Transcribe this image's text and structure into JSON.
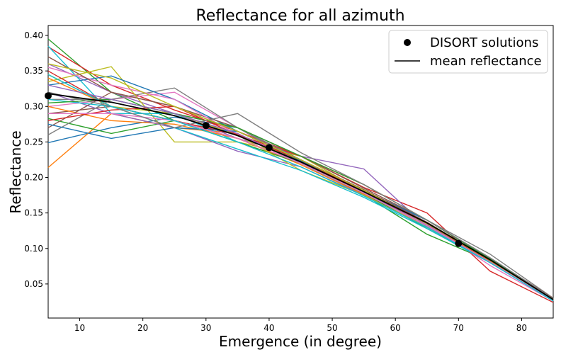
{
  "chart_data": {
    "type": "line",
    "title": "Reflectance for all azimuth",
    "xlabel": "Emergence (in degree)",
    "ylabel": "Reflectance",
    "xlim": [
      5,
      85
    ],
    "ylim": [
      0.002,
      0.414
    ],
    "xticks": [
      10,
      20,
      30,
      40,
      50,
      60,
      70,
      80
    ],
    "xtick_labels": [
      "10",
      "20",
      "30",
      "40",
      "50",
      "60",
      "70",
      "80"
    ],
    "yticks": [
      0.05,
      0.1,
      0.15,
      0.2,
      0.25,
      0.3,
      0.35,
      0.4
    ],
    "ytick_labels": [
      "0.05",
      "0.10",
      "0.15",
      "0.20",
      "0.25",
      "0.30",
      "0.35",
      "0.40"
    ],
    "grid": false,
    "legend_position": "top-right",
    "legend": [
      "DISORT solutions",
      "mean reflectance"
    ],
    "x": [
      5,
      15,
      25,
      35,
      45,
      55,
      65,
      75,
      85
    ],
    "mean_series": {
      "name": "mean reflectance",
      "color": "#000000",
      "values": [
        0.318,
        0.306,
        0.287,
        0.259,
        0.222,
        0.18,
        0.136,
        0.084,
        0.028
      ]
    },
    "disort_points": {
      "name": "DISORT solutions",
      "color": "#000000",
      "x": [
        5,
        30,
        40,
        70
      ],
      "y": [
        0.315,
        0.273,
        0.242,
        0.107
      ]
    },
    "azimuth_series": [
      {
        "color": "#1f77b4",
        "values": [
          0.249,
          0.27,
          0.285,
          0.27,
          0.225,
          0.18,
          0.132,
          0.082,
          0.027
        ]
      },
      {
        "color": "#ff7f0e",
        "values": [
          0.214,
          0.29,
          0.27,
          0.262,
          0.22,
          0.177,
          0.133,
          0.083,
          0.028
        ]
      },
      {
        "color": "#2ca02c",
        "values": [
          0.395,
          0.32,
          0.28,
          0.26,
          0.223,
          0.176,
          0.12,
          0.082,
          0.029
        ]
      },
      {
        "color": "#d62728",
        "values": [
          0.384,
          0.33,
          0.295,
          0.265,
          0.23,
          0.186,
          0.15,
          0.068,
          0.024
        ]
      },
      {
        "color": "#9467bd",
        "values": [
          0.36,
          0.32,
          0.29,
          0.255,
          0.23,
          0.212,
          0.13,
          0.08,
          0.026
        ]
      },
      {
        "color": "#8c564b",
        "values": [
          0.29,
          0.3,
          0.28,
          0.26,
          0.225,
          0.18,
          0.14,
          0.085,
          0.029
        ]
      },
      {
        "color": "#e377c2",
        "values": [
          0.3,
          0.31,
          0.32,
          0.27,
          0.22,
          0.18,
          0.135,
          0.076,
          0.026
        ]
      },
      {
        "color": "#7f7f7f",
        "values": [
          0.31,
          0.31,
          0.326,
          0.27,
          0.22,
          0.18,
          0.14,
          0.092,
          0.03
        ]
      },
      {
        "color": "#bcbd22",
        "values": [
          0.335,
          0.356,
          0.25,
          0.25,
          0.23,
          0.18,
          0.13,
          0.08,
          0.027
        ]
      },
      {
        "color": "#17becf",
        "values": [
          0.385,
          0.29,
          0.29,
          0.25,
          0.22,
          0.175,
          0.13,
          0.08,
          0.026
        ]
      },
      {
        "color": "#1f77b4",
        "values": [
          0.33,
          0.343,
          0.31,
          0.265,
          0.224,
          0.18,
          0.132,
          0.083,
          0.028
        ]
      },
      {
        "color": "#ff7f0e",
        "values": [
          0.3,
          0.28,
          0.275,
          0.255,
          0.218,
          0.176,
          0.13,
          0.08,
          0.027
        ]
      },
      {
        "color": "#2ca02c",
        "values": [
          0.283,
          0.262,
          0.28,
          0.25,
          0.22,
          0.178,
          0.128,
          0.08,
          0.027
        ]
      },
      {
        "color": "#d62728",
        "values": [
          0.35,
          0.3,
          0.28,
          0.26,
          0.23,
          0.19,
          0.14,
          0.085,
          0.028
        ]
      },
      {
        "color": "#9467bd",
        "values": [
          0.32,
          0.29,
          0.27,
          0.237,
          0.215,
          0.175,
          0.13,
          0.083,
          0.028
        ]
      },
      {
        "color": "#8c564b",
        "values": [
          0.27,
          0.32,
          0.3,
          0.27,
          0.23,
          0.185,
          0.14,
          0.086,
          0.03
        ]
      },
      {
        "color": "#e377c2",
        "values": [
          0.355,
          0.33,
          0.31,
          0.26,
          0.22,
          0.18,
          0.135,
          0.08,
          0.027
        ]
      },
      {
        "color": "#7f7f7f",
        "values": [
          0.26,
          0.31,
          0.29,
          0.27,
          0.225,
          0.182,
          0.135,
          0.085,
          0.029
        ]
      },
      {
        "color": "#bcbd22",
        "values": [
          0.345,
          0.3,
          0.29,
          0.26,
          0.21,
          0.175,
          0.13,
          0.08,
          0.027
        ]
      },
      {
        "color": "#17becf",
        "values": [
          0.31,
          0.3,
          0.27,
          0.24,
          0.21,
          0.172,
          0.128,
          0.08,
          0.027
        ]
      },
      {
        "color": "#1f77b4",
        "values": [
          0.275,
          0.255,
          0.27,
          0.265,
          0.225,
          0.182,
          0.14,
          0.085,
          0.029
        ]
      },
      {
        "color": "#ff7f0e",
        "values": [
          0.34,
          0.3,
          0.28,
          0.255,
          0.22,
          0.18,
          0.135,
          0.082,
          0.027
        ]
      },
      {
        "color": "#2ca02c",
        "values": [
          0.305,
          0.31,
          0.29,
          0.27,
          0.23,
          0.19,
          0.14,
          0.085,
          0.029
        ]
      },
      {
        "color": "#d62728",
        "values": [
          0.28,
          0.295,
          0.3,
          0.26,
          0.225,
          0.18,
          0.135,
          0.082,
          0.027
        ]
      },
      {
        "color": "#9467bd",
        "values": [
          0.33,
          0.31,
          0.29,
          0.262,
          0.22,
          0.178,
          0.133,
          0.08,
          0.027
        ]
      },
      {
        "color": "#8c564b",
        "values": [
          0.37,
          0.32,
          0.3,
          0.265,
          0.225,
          0.183,
          0.137,
          0.084,
          0.028
        ]
      },
      {
        "color": "#e377c2",
        "values": [
          0.29,
          0.29,
          0.28,
          0.255,
          0.22,
          0.178,
          0.132,
          0.081,
          0.027
        ]
      },
      {
        "color": "#7f7f7f",
        "values": [
          0.32,
          0.3,
          0.27,
          0.29,
          0.235,
          0.19,
          0.14,
          0.087,
          0.029
        ]
      },
      {
        "color": "#bcbd22",
        "values": [
          0.36,
          0.34,
          0.3,
          0.265,
          0.225,
          0.182,
          0.135,
          0.083,
          0.028
        ]
      },
      {
        "color": "#17becf",
        "values": [
          0.345,
          0.3,
          0.28,
          0.25,
          0.215,
          0.174,
          0.13,
          0.08,
          0.026
        ]
      }
    ]
  }
}
